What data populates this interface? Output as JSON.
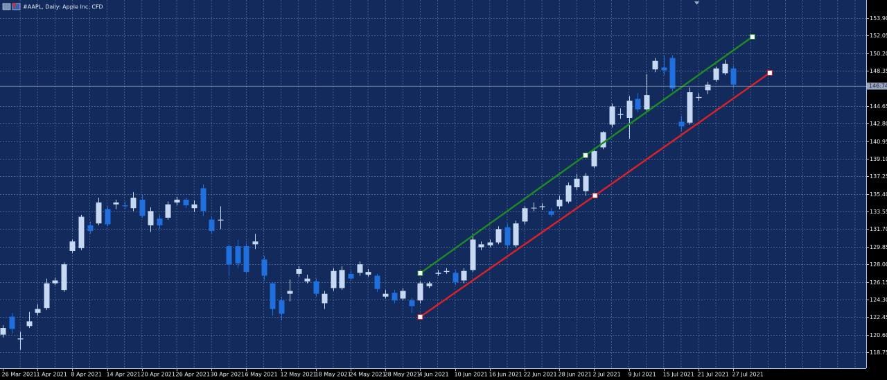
{
  "chart_data": {
    "type": "candlestick",
    "title": "#AAPL, Daily: Apple Inc. CFD",
    "up_color": "#c6d8f2",
    "down_color": "#1f6fde",
    "grid": true,
    "categories": [
      "26 Mar 2021",
      null,
      null,
      null,
      "1 Apr 2021",
      null,
      null,
      null,
      "8 Apr 2021",
      null,
      null,
      null,
      "14 Apr 2021",
      null,
      null,
      null,
      "20 Apr 2021",
      null,
      null,
      null,
      "26 Apr 2021",
      null,
      null,
      null,
      "30 Apr 2021",
      null,
      null,
      null,
      "6 May 2021",
      null,
      null,
      null,
      "12 May 2021",
      null,
      null,
      null,
      "18 May 2021",
      null,
      null,
      null,
      "24 May 2021",
      null,
      null,
      null,
      "28 May 2021",
      null,
      null,
      null,
      "4 Jun 2021",
      null,
      null,
      null,
      "10 Jun 2021",
      null,
      null,
      null,
      "16 Jun 2021",
      null,
      null,
      null,
      "22 Jun 2021",
      null,
      null,
      null,
      "28 Jun 2021",
      null,
      null,
      null,
      "2 Jul 2021",
      null,
      null,
      null,
      "9 Jul 2021",
      null,
      null,
      null,
      "15 Jul 2021",
      null,
      null,
      null,
      "21 Jul 2021",
      null,
      null,
      null,
      "27 Jul 2021"
    ],
    "open": [
      120.6,
      122.5,
      120.1,
      121.5,
      122.9,
      123.4,
      126.0,
      125.3,
      129.4,
      129.7,
      132.1,
      132.3,
      133.8,
      134.3,
      134.2,
      133.9,
      134.8,
      132.1,
      132.8,
      132.9,
      134.5,
      134.8,
      133.9,
      136.0,
      132.7,
      132.6,
      129.9,
      129.9,
      129.9,
      130.1,
      128.5,
      126.0,
      124.2,
      124.9,
      127.0,
      126.2,
      126.2,
      123.9,
      125.5,
      125.5,
      127.0,
      127.1,
      126.9,
      126.8,
      124.6,
      125.0,
      124.4,
      124.2,
      124.2,
      125.7,
      127.0,
      127.2,
      127.1,
      126.3,
      127.4,
      129.8,
      130.0,
      130.3,
      131.9,
      130.0,
      132.5,
      133.9,
      134.0,
      133.6,
      134.1,
      134.6,
      136.1,
      135.7,
      138.3,
      140.3,
      142.7,
      143.7,
      143.4,
      145.4,
      144.3,
      148.5,
      148.7,
      149.7,
      143.0,
      142.9,
      145.5,
      146.3,
      147.4,
      148.1,
      148.6
    ],
    "high": [
      121.6,
      122.9,
      120.9,
      123.0,
      123.8,
      126.5,
      126.6,
      128.2,
      130.6,
      133.2,
      132.5,
      135.0,
      134.1,
      134.8,
      134.6,
      135.6,
      135.3,
      134.0,
      133.2,
      134.6,
      135.1,
      135.0,
      134.7,
      136.4,
      133.0,
      134.1,
      130.1,
      130.6,
      130.2,
      131.2,
      128.9,
      126.1,
      124.6,
      126.4,
      127.8,
      126.9,
      126.5,
      125.2,
      127.6,
      127.8,
      127.3,
      128.3,
      127.5,
      127.0,
      125.3,
      125.3,
      125.5,
      124.5,
      126.2,
      126.2,
      127.4,
      127.6,
      127.4,
      127.6,
      131.2,
      130.4,
      130.6,
      132.0,
      132.3,
      132.6,
      134.1,
      134.5,
      134.4,
      133.9,
      135.2,
      136.6,
      137.5,
      137.6,
      140.1,
      142.0,
      144.9,
      144.4,
      145.7,
      146.0,
      148.0,
      149.7,
      150.0,
      150.0,
      143.6,
      146.6,
      146.0,
      147.2,
      148.8,
      149.5,
      148.9
    ],
    "low": [
      120.3,
      120.7,
      119.0,
      121.3,
      122.6,
      123.2,
      125.8,
      125.1,
      129.2,
      129.5,
      131.2,
      132.1,
      132.0,
      133.8,
      133.8,
      133.6,
      132.9,
      131.4,
      131.7,
      132.7,
      134.2,
      133.9,
      133.5,
      133.1,
      131.2,
      131.7,
      126.9,
      127.6,
      127.0,
      129.6,
      126.3,
      122.6,
      122.1,
      124.1,
      126.7,
      126.0,
      124.6,
      123.3,
      125.2,
      125.3,
      126.3,
      126.8,
      126.7,
      125.1,
      124.4,
      123.9,
      124.2,
      122.9,
      123.9,
      125.5,
      126.8,
      127.0,
      125.8,
      126.0,
      127.2,
      129.5,
      129.8,
      130.1,
      129.6,
      129.8,
      132.2,
      133.6,
      133.7,
      133.0,
      133.8,
      134.4,
      135.8,
      135.2,
      138.1,
      140.1,
      142.4,
      143.3,
      141.2,
      144.0,
      144.1,
      148.2,
      147.9,
      146.2,
      142.0,
      142.7,
      145.2,
      145.9,
      147.2,
      147.9,
      146.5
    ],
    "close": [
      121.3,
      121.2,
      120.2,
      122.0,
      123.3,
      126.0,
      126.3,
      128.0,
      130.4,
      133.0,
      131.5,
      134.5,
      132.2,
      134.5,
      134.1,
      135.0,
      133.1,
      133.6,
      132.1,
      134.3,
      134.8,
      134.2,
      134.3,
      133.6,
      131.5,
      132.7,
      128.0,
      128.1,
      127.2,
      130.4,
      126.8,
      123.3,
      122.8,
      125.2,
      127.5,
      126.5,
      124.9,
      124.9,
      127.3,
      127.4,
      126.5,
      128.0,
      127.2,
      125.4,
      124.9,
      124.2,
      125.2,
      123.6,
      126.0,
      126.0,
      127.1,
      127.3,
      126.1,
      127.3,
      130.6,
      130.1,
      130.3,
      131.7,
      130.0,
      132.3,
      133.9,
      133.95,
      134.1,
      133.2,
      134.8,
      136.3,
      137.0,
      137.3,
      139.9,
      141.9,
      144.6,
      143.8,
      145.2,
      144.3,
      145.8,
      149.4,
      148.4,
      146.5,
      142.5,
      146.1,
      145.6,
      146.9,
      148.6,
      149.1,
      146.9
    ],
    "ylim": [
      117.07,
      155.8
    ],
    "yticks": [
      {
        "value": 153.9,
        "label": "153.90"
      },
      {
        "value": 152.05,
        "label": "152.05"
      },
      {
        "value": 150.2,
        "label": "150.20"
      },
      {
        "value": 148.35,
        "label": "148.35"
      },
      {
        "value": 144.65,
        "label": "144.65"
      },
      {
        "value": 142.8,
        "label": "142.80"
      },
      {
        "value": 140.95,
        "label": "140.95"
      },
      {
        "value": 139.1,
        "label": "139.10"
      },
      {
        "value": 137.25,
        "label": "137.25"
      },
      {
        "value": 135.4,
        "label": "135.40"
      },
      {
        "value": 133.55,
        "label": "133.55"
      },
      {
        "value": 131.7,
        "label": "131.70"
      },
      {
        "value": 129.85,
        "label": "129.85"
      },
      {
        "value": 128,
        "label": "128.00"
      },
      {
        "value": 126.15,
        "label": "126.15"
      },
      {
        "value": 124.3,
        "label": "124.30"
      },
      {
        "value": 122.45,
        "label": "122.45"
      },
      {
        "value": 120.6,
        "label": "120.60"
      },
      {
        "value": 118.75,
        "label": "118.75"
      }
    ],
    "current_price": {
      "value": 146.74,
      "label": "146.74"
    },
    "trendlines": [
      {
        "color": "#1f8a24",
        "x": [
          48,
          67,
          86.2
        ],
        "y": [
          127.06,
          139.46,
          151.93
        ]
      },
      {
        "color": "#d8222a",
        "x": [
          48,
          68.1,
          88.2
        ],
        "y": [
          122.47,
          135.23,
          148.14
        ]
      }
    ]
  }
}
